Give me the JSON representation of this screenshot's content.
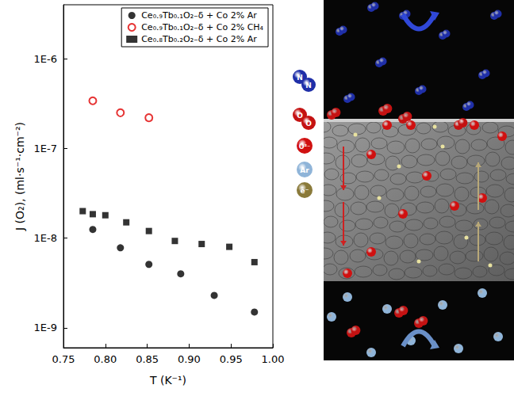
{
  "chart_data": {
    "type": "scatter",
    "x_label": "T (K⁻¹)",
    "y_label": "J (O₂), (ml·s⁻¹·cm⁻²)",
    "xlim": [
      0.75,
      1.0
    ],
    "xticks": [
      {
        "value": 0.75,
        "label": "0.75"
      },
      {
        "value": 0.8,
        "label": "0.80"
      },
      {
        "value": 0.85,
        "label": "0.85"
      },
      {
        "value": 0.9,
        "label": "0.90"
      },
      {
        "value": 0.95,
        "label": "0.95"
      },
      {
        "value": 1.0,
        "label": "1.00"
      }
    ],
    "ylim": [
      6e-10,
      4e-06
    ],
    "yticks": [
      {
        "value": 1e-09,
        "label": "1E-9"
      },
      {
        "value": 1e-08,
        "label": "1E-8"
      },
      {
        "value": 1e-07,
        "label": "1E-7"
      },
      {
        "value": 1e-06,
        "label": "1E-6"
      }
    ],
    "log": "y",
    "grid": false,
    "legend": "upper right",
    "series": [
      {
        "name": "Ce₀.₉Tb₀.₁O₂₋δ + Co 2% Ar",
        "color": "#000000",
        "marker": "circle",
        "x": [
          0.785,
          0.818,
          0.852,
          0.89,
          0.93,
          0.978
        ],
        "values": [
          1.25e-08,
          7.8e-09,
          5.1e-09,
          4e-09,
          2.3e-09,
          1.5e-09
        ]
      },
      {
        "name": "Ce₀.₉Tb₀.₁O₂₋δ + Co 2% CH₄",
        "color": "#e00000",
        "marker": "circle_open",
        "x": [
          0.785,
          0.818,
          0.852
        ],
        "values": [
          3.4e-07,
          2.5e-07,
          2.2e-07
        ]
      },
      {
        "name": "Ce₀.₈Tb₀.₂O₂₋δ + Co 2% Ar",
        "color": "#000000",
        "marker": "square",
        "x": [
          0.773,
          0.785,
          0.8,
          0.825,
          0.852,
          0.883,
          0.915,
          0.948,
          0.978
        ],
        "values": [
          2e-08,
          1.85e-08,
          1.8e-08,
          1.5e-08,
          1.2e-08,
          9.3e-09,
          8.6e-09,
          8e-09,
          5.4e-09
        ]
      }
    ]
  },
  "schematic": {
    "icons": [
      {
        "labels": [
          "N",
          "N"
        ],
        "color": "#1f2fa8"
      },
      {
        "labels": [
          "O",
          "O"
        ],
        "color": "#c41212"
      },
      {
        "labels": [
          "O²⁻"
        ],
        "color": "#d01010"
      },
      {
        "labels": [
          "Ar"
        ],
        "color": "#8fb4d8"
      },
      {
        "labels": [
          "e⁻"
        ],
        "color": "#8a7a3a"
      }
    ]
  }
}
